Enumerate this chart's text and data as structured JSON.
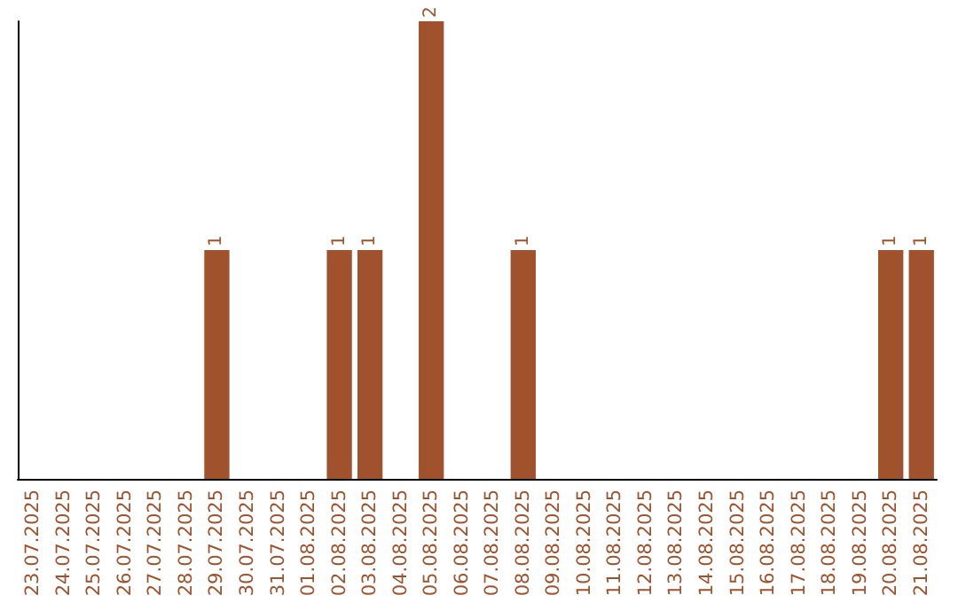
{
  "chart_data": {
    "type": "bar",
    "categories": [
      "23.07.2025",
      "24.07.2025",
      "25.07.2025",
      "26.07.2025",
      "27.07.2025",
      "28.07.2025",
      "29.07.2025",
      "30.07.2025",
      "31.07.2025",
      "01.08.2025",
      "02.08.2025",
      "03.08.2025",
      "04.08.2025",
      "05.08.2025",
      "06.08.2025",
      "07.08.2025",
      "08.08.2025",
      "09.08.2025",
      "10.08.2025",
      "11.08.2025",
      "12.08.2025",
      "13.08.2025",
      "14.08.2025",
      "15.08.2025",
      "16.08.2025",
      "17.08.2025",
      "18.08.2025",
      "19.08.2025",
      "20.08.2025",
      "21.08.2025"
    ],
    "values": [
      0,
      0,
      0,
      0,
      0,
      0,
      1,
      0,
      0,
      0,
      1,
      1,
      0,
      2,
      0,
      0,
      1,
      0,
      0,
      0,
      0,
      0,
      0,
      0,
      0,
      0,
      0,
      0,
      1,
      1
    ],
    "value_labels": [
      null,
      null,
      null,
      null,
      null,
      null,
      "1",
      null,
      null,
      null,
      "1",
      "1",
      null,
      "2",
      null,
      null,
      "1",
      null,
      null,
      null,
      null,
      null,
      null,
      null,
      null,
      null,
      null,
      null,
      "1",
      "1"
    ],
    "color": "#a0522d",
    "grid": false,
    "tick_labels": "x"
  }
}
